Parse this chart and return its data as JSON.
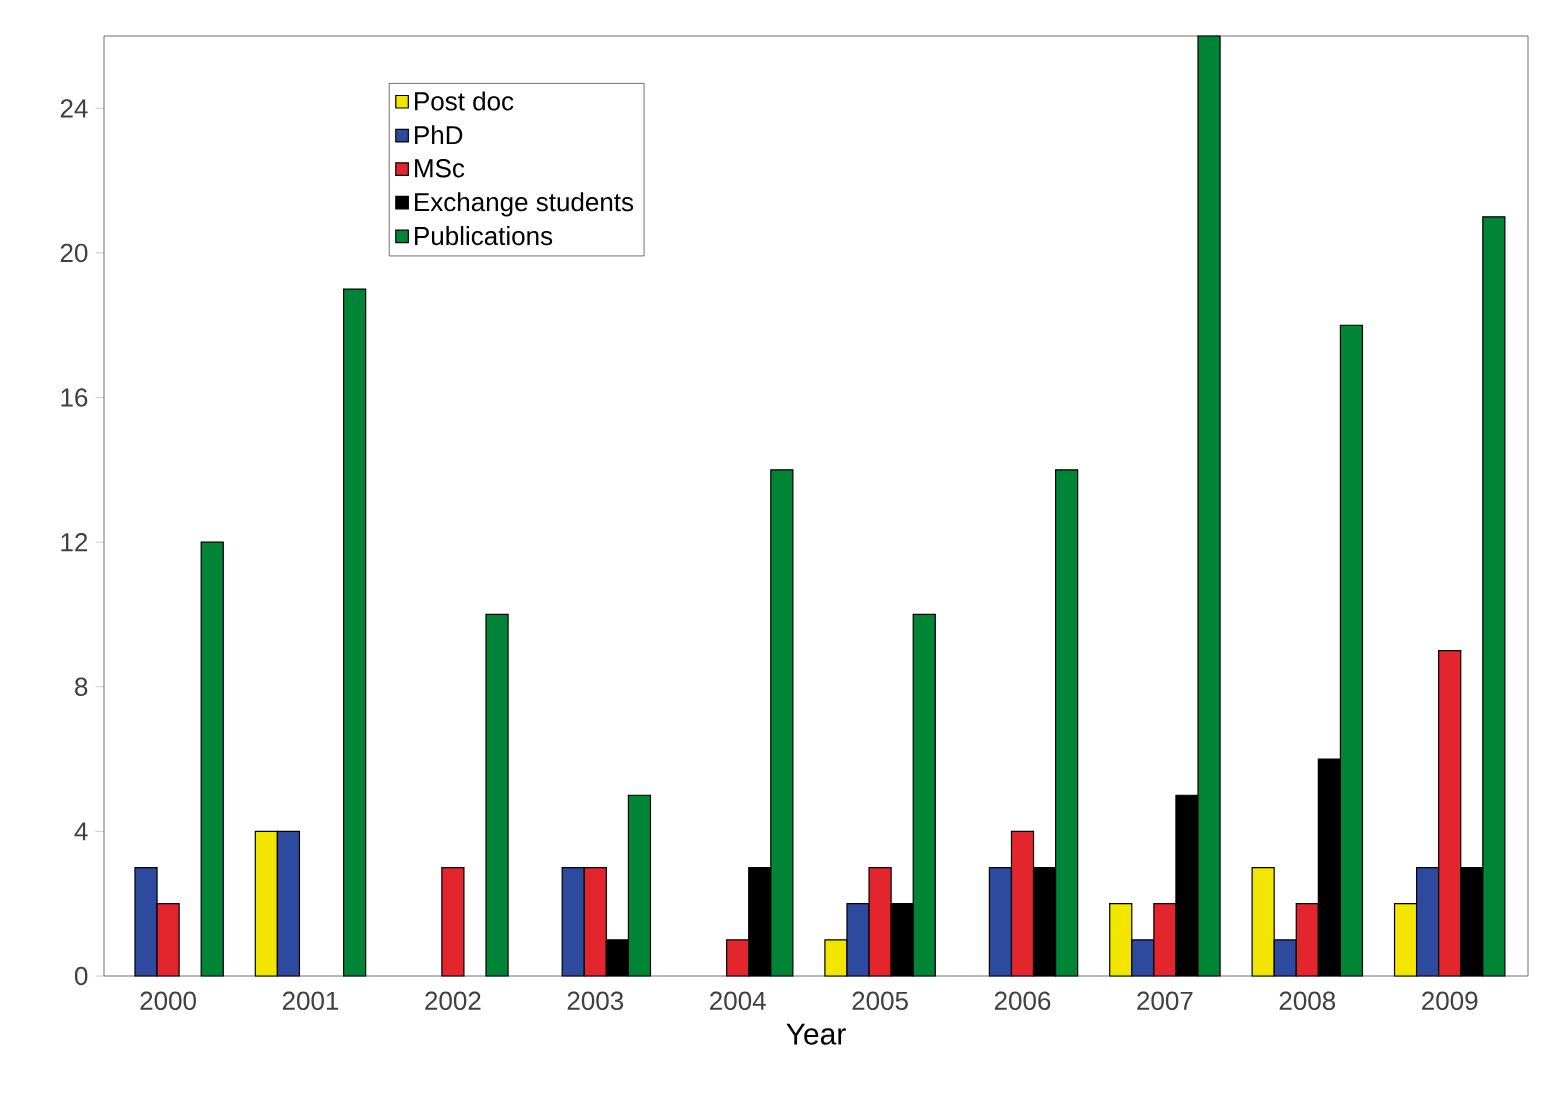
{
  "chart_data": {
    "type": "bar",
    "xlabel": "Year",
    "categories": [
      "2000",
      "2001",
      "2002",
      "2003",
      "2004",
      "2005",
      "2006",
      "2007",
      "2008",
      "2009"
    ],
    "series": [
      {
        "name": "Post doc",
        "color": "#f2e600",
        "values": [
          0,
          4,
          0,
          0,
          0,
          1,
          0,
          2,
          3,
          2
        ]
      },
      {
        "name": "PhD",
        "color": "#2e4a9e",
        "values": [
          3,
          4,
          0,
          3,
          0,
          2,
          3,
          1,
          1,
          3
        ]
      },
      {
        "name": "MSc",
        "color": "#e3262d",
        "values": [
          2,
          0,
          3,
          3,
          1,
          3,
          4,
          2,
          2,
          9
        ]
      },
      {
        "name": "Exchange students",
        "color": "#000000",
        "values": [
          0,
          0,
          0,
          1,
          3,
          2,
          3,
          5,
          6,
          3
        ]
      },
      {
        "name": "Publications",
        "color": "#008536",
        "values": [
          12,
          19,
          10,
          5,
          14,
          10,
          14,
          26,
          18,
          21
        ]
      }
    ],
    "ylim": [
      0,
      26
    ],
    "yticks": [
      0,
      4,
      8,
      12,
      16,
      20,
      24
    ],
    "grid": false,
    "legend": "top left"
  }
}
